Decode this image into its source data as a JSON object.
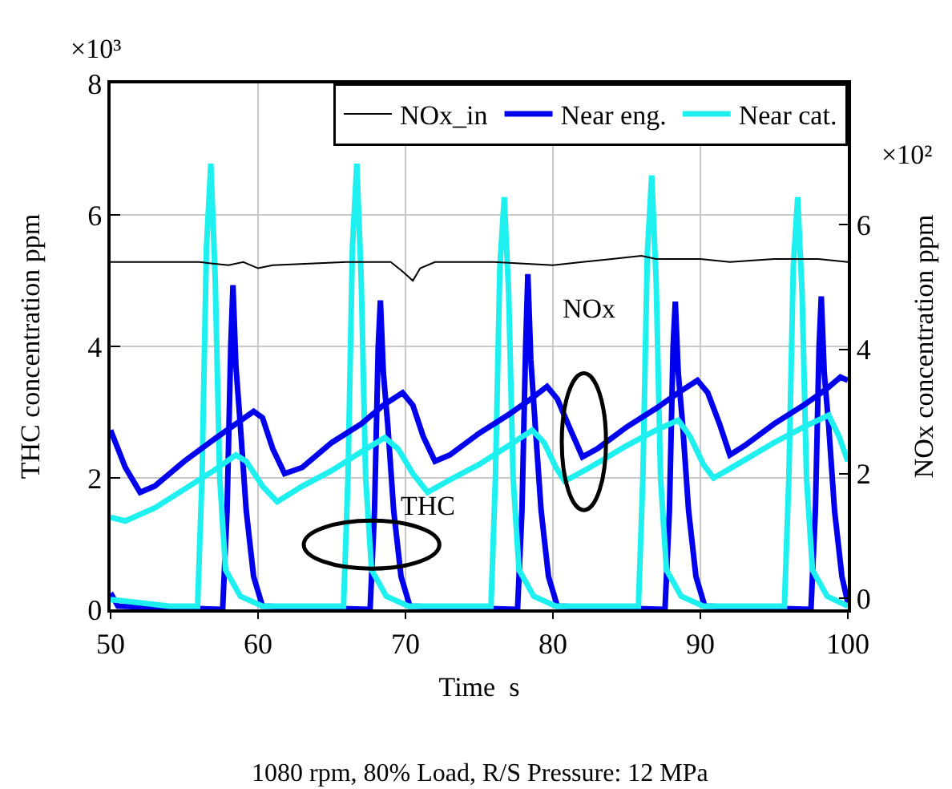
{
  "chart_data": {
    "type": "line",
    "xlabel": "Time  s",
    "ylabel": "THC concentration ppm",
    "y2label": "NOx concentration ppm",
    "annotations": [
      "×10³",
      "×10²",
      "NOx",
      "THC",
      "1080 rpm, 80% Load, R/S Pressure: 12 MPa"
    ],
    "xlim": [
      50,
      100
    ],
    "xticks": [
      50,
      60,
      70,
      80,
      90,
      100
    ],
    "ylim": [
      0,
      8
    ],
    "yticks": [
      0,
      2,
      4,
      6,
      8
    ],
    "y2lim": [
      -0.18,
      8.27
    ],
    "y2ticks": [
      0,
      2,
      4,
      6
    ],
    "grid": true,
    "legend": "top right",
    "marker": "none",
    "line_style": "solid",
    "series": [
      {
        "name": "NOx_in",
        "color": "#000000",
        "axis": "y2",
        "x": [
          50,
          56,
          58,
          59,
          60,
          61,
          66,
          69,
          69.8,
          70.5,
          71,
          72,
          76,
          80,
          82,
          84,
          86,
          87,
          90,
          92,
          95,
          98,
          100
        ],
        "values": [
          5.4,
          5.4,
          5.35,
          5.4,
          5.3,
          5.35,
          5.4,
          5.4,
          5.25,
          5.1,
          5.3,
          5.4,
          5.4,
          5.35,
          5.4,
          5.45,
          5.5,
          5.45,
          5.45,
          5.4,
          5.45,
          5.45,
          5.4
        ]
      },
      {
        "name": "Near eng.",
        "color": "#0000ee",
        "x": [
          50,
          50.5,
          57.6,
          57.9,
          58.15,
          58.3,
          58.5,
          58.8,
          59.2,
          59.7,
          60.3,
          67.6,
          67.9,
          68.15,
          68.3,
          68.5,
          68.8,
          69.2,
          69.7,
          70.3,
          77.6,
          77.9,
          78.15,
          78.3,
          78.5,
          78.8,
          79.2,
          79.7,
          80.3,
          87.6,
          87.9,
          88.15,
          88.3,
          88.5,
          88.8,
          89.2,
          89.7,
          90.3,
          97.5,
          97.8,
          98.05,
          98.2,
          98.4,
          98.7,
          99.1,
          99.6,
          100
        ],
        "values": [
          0.25,
          0.05,
          0,
          1.5,
          4.0,
          4.93,
          3.7,
          2.8,
          1.5,
          0.5,
          0.05,
          0,
          1.5,
          4.0,
          4.7,
          3.6,
          2.8,
          1.5,
          0.5,
          0.05,
          0,
          1.5,
          4.0,
          5.1,
          3.8,
          2.8,
          1.5,
          0.5,
          0.05,
          0,
          1.5,
          4.0,
          4.68,
          3.6,
          2.8,
          1.5,
          0.5,
          0.05,
          0,
          1.5,
          4.0,
          4.76,
          3.6,
          2.8,
          1.5,
          0.5,
          0.1
        ]
      },
      {
        "name": "Near cat.",
        "color": "#1ef0f0",
        "x": [
          50,
          52,
          54,
          55.9,
          56.2,
          56.5,
          56.8,
          57.1,
          57.4,
          57.8,
          58.8,
          60.3,
          65.8,
          66.1,
          66.4,
          66.7,
          67,
          67.3,
          67.7,
          68.7,
          70.2,
          75.8,
          76.1,
          76.4,
          76.7,
          77,
          77.3,
          77.7,
          78.7,
          80.2,
          85.8,
          86.1,
          86.4,
          86.7,
          87,
          87.3,
          87.7,
          88.7,
          90.2,
          95.7,
          96,
          96.3,
          96.6,
          96.9,
          97.2,
          97.6,
          98.6,
          100
        ],
        "values": [
          0.15,
          0.1,
          0.05,
          0.05,
          2.0,
          5.5,
          6.78,
          5.0,
          2.0,
          0.6,
          0.2,
          0.05,
          0.05,
          2.0,
          5.5,
          6.78,
          5.0,
          2.0,
          0.6,
          0.2,
          0.05,
          0.05,
          2.0,
          5.2,
          6.27,
          4.8,
          2.0,
          0.6,
          0.2,
          0.05,
          0.05,
          2.0,
          5.4,
          6.6,
          5.0,
          2.0,
          0.6,
          0.2,
          0.05,
          0.05,
          2.0,
          5.2,
          6.27,
          4.8,
          2.0,
          0.6,
          0.2,
          0.05
        ]
      },
      {
        "color": "#0000ee",
        "axis": "y2",
        "x": [
          50,
          51,
          52,
          53,
          55,
          57,
          58.5,
          59.7,
          60.3,
          61,
          61.8,
          63,
          65,
          67,
          68.5,
          69.8,
          70.5,
          71.2,
          72,
          73,
          75,
          77,
          78.5,
          79.6,
          80.3,
          81.2,
          82,
          83,
          85,
          87,
          88.5,
          89.8,
          90.5,
          91.3,
          92,
          93,
          95,
          97,
          98.5,
          99.5,
          100
        ],
        "values": [
          2.7,
          2.1,
          1.7,
          1.8,
          2.2,
          2.55,
          2.8,
          3.0,
          2.9,
          2.4,
          2.0,
          2.1,
          2.5,
          2.8,
          3.1,
          3.3,
          3.1,
          2.6,
          2.2,
          2.3,
          2.65,
          2.95,
          3.2,
          3.4,
          3.2,
          2.7,
          2.27,
          2.4,
          2.75,
          3.05,
          3.3,
          3.5,
          3.3,
          2.8,
          2.3,
          2.45,
          2.8,
          3.1,
          3.35,
          3.55,
          3.5
        ]
      },
      {
        "color": "#1ef0f0",
        "axis": "y2",
        "x": [
          50,
          51,
          53,
          55,
          57,
          58.5,
          59.2,
          60.3,
          61.3,
          63,
          65,
          67,
          68.6,
          69.5,
          70.5,
          71.5,
          73,
          75,
          77,
          78.6,
          79.4,
          80.2,
          80.8,
          82.5,
          85,
          87,
          88.5,
          89.3,
          90.2,
          90.9,
          92.5,
          95,
          97,
          98.7,
          99.4,
          100
        ],
        "values": [
          1.3,
          1.24,
          1.45,
          1.75,
          2.05,
          2.3,
          2.2,
          1.8,
          1.55,
          1.8,
          2.05,
          2.35,
          2.58,
          2.4,
          2.0,
          1.7,
          1.9,
          2.15,
          2.45,
          2.7,
          2.5,
          2.1,
          1.88,
          2.1,
          2.45,
          2.7,
          2.86,
          2.6,
          2.15,
          1.93,
          2.15,
          2.5,
          2.75,
          2.94,
          2.6,
          2.2
        ]
      }
    ]
  }
}
